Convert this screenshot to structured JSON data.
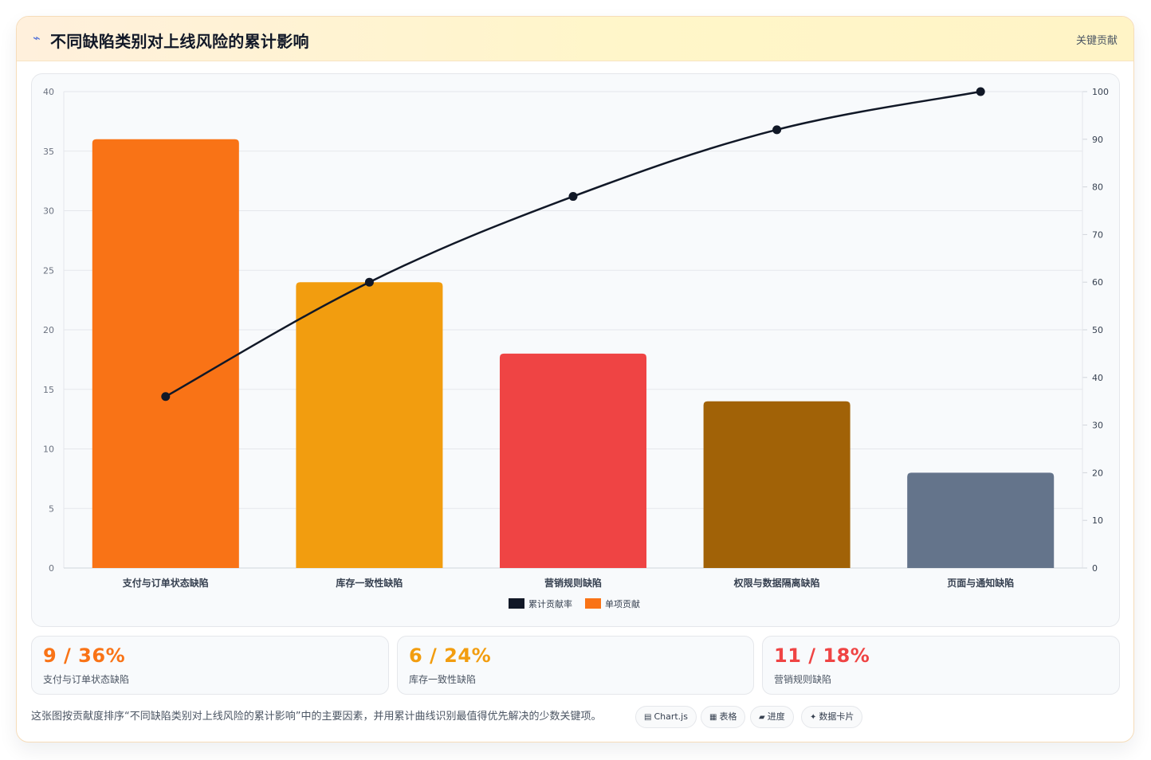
{
  "header": {
    "icon": "lightning-icon",
    "title": "不同缺陷类别对上线风险的累计影响",
    "badge": "关键贡献"
  },
  "chart_data": {
    "type": "bar",
    "categories": [
      "支付与订单状态缺陷",
      "库存一致性缺陷",
      "营销规则缺陷",
      "权限与数据隔离缺陷",
      "页面与通知缺陷"
    ],
    "series": [
      {
        "name": "单项贡献",
        "type": "bar",
        "axis": "left",
        "values": [
          36,
          24,
          18,
          14,
          8
        ]
      },
      {
        "name": "累计贡献率",
        "type": "line",
        "axis": "right",
        "values": [
          36,
          60,
          78,
          92,
          100
        ]
      }
    ],
    "bar_colors": [
      "#f97316",
      "#f29d0f",
      "#ef4444",
      "#a16207",
      "#64748b"
    ],
    "line_color": "#111827",
    "y_left": {
      "ylim": [
        0,
        40
      ],
      "ticks": [
        0,
        5,
        10,
        15,
        20,
        25,
        30,
        35,
        40
      ]
    },
    "y_right": {
      "ylim": [
        0,
        100
      ],
      "ticks": [
        0,
        10,
        20,
        30,
        40,
        50,
        60,
        70,
        80,
        90,
        100
      ]
    },
    "grid": true,
    "legend_position": "bottom",
    "legend": [
      {
        "label": "累计贡献率",
        "color": "#111827"
      },
      {
        "label": "单项贡献",
        "color": "#f97316"
      }
    ]
  },
  "stats": [
    {
      "value": "9 / 36%",
      "label": "支付与订单状态缺陷",
      "color": "#f97316"
    },
    {
      "value": "6 / 24%",
      "label": "库存一致性缺陷",
      "color": "#f29d0f"
    },
    {
      "value": "11 / 18%",
      "label": "营销规则缺陷",
      "color": "#ef4444"
    }
  ],
  "footer": {
    "text": "这张图按贡献度排序“不同缺陷类别对上线风险的累计影响”中的主要因素，并用累计曲线识别最值得优先解决的少数关键项。",
    "tags": [
      {
        "icon": "chart-icon",
        "glyph": "▤",
        "label": "Chart.js"
      },
      {
        "icon": "table-icon",
        "glyph": "▦",
        "label": "表格"
      },
      {
        "icon": "progress-icon",
        "glyph": "▰",
        "label": "进度"
      },
      {
        "icon": "card-icon",
        "glyph": "✦",
        "label": "数据卡片"
      }
    ]
  }
}
